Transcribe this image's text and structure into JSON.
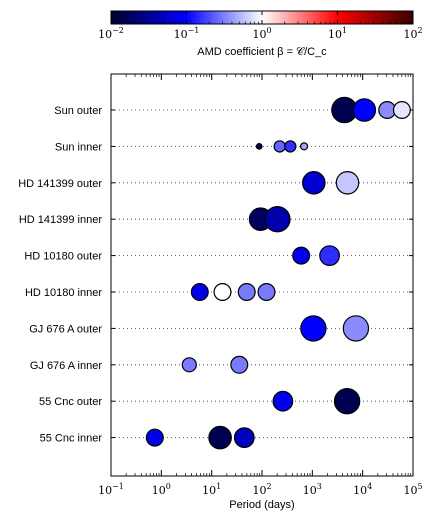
{
  "chart_data": {
    "type": "scatter",
    "xlabel": "Period (days)",
    "x_scale": "log",
    "xlim": [
      0.1,
      100000
    ],
    "x_ticks": [
      "10^{-1}",
      "10^{0}",
      "10^{1}",
      "10^{2}",
      "10^{3}",
      "10^{4}",
      "10^{5}"
    ],
    "grid": "dotted horizontal lines per system",
    "colorbar": {
      "label": "AMD coefficient β = 𝒞/C_c",
      "scale": "log",
      "range": [
        0.01,
        100
      ],
      "ticks": [
        "10^{-2}",
        "10^{-1}",
        "10^{0}",
        "10^{1}",
        "10^{2}"
      ],
      "colormap": [
        "#00002a",
        "#0000ff",
        "#ffffff",
        "#ff0000",
        "#3a0000"
      ]
    },
    "categories": [
      "Sun outer",
      "Sun inner",
      "HD 141399 outer",
      "HD 141399 inner",
      "HD 10180 outer",
      "HD 10180 inner",
      "GJ 676 A outer",
      "GJ 676 A inner",
      "55 Cnc outer",
      "55 Cnc inner"
    ],
    "series": [
      {
        "category": "Sun outer",
        "points": [
          {
            "period": 4330,
            "beta": 0.015,
            "size": 9
          },
          {
            "period": 10760,
            "beta": 0.1,
            "size": 8
          },
          {
            "period": 30700,
            "beta": 0.35,
            "size": 6
          },
          {
            "period": 60200,
            "beta": 0.8,
            "size": 6
          }
        ]
      },
      {
        "category": "Sun inner",
        "points": [
          {
            "period": 88,
            "beta": 0.015,
            "size": 2
          },
          {
            "period": 225,
            "beta": 0.25,
            "size": 4
          },
          {
            "period": 365,
            "beta": 0.15,
            "size": 4
          },
          {
            "period": 687,
            "beta": 0.45,
            "size": 2.5
          }
        ]
      },
      {
        "category": "HD 141399 outer",
        "points": [
          {
            "period": 1070,
            "beta": 0.06,
            "size": 8
          },
          {
            "period": 5000,
            "beta": 0.6,
            "size": 8
          }
        ]
      },
      {
        "category": "HD 141399 inner",
        "points": [
          {
            "period": 94,
            "beta": 0.018,
            "size": 8
          },
          {
            "period": 202,
            "beta": 0.04,
            "size": 9
          }
        ]
      },
      {
        "category": "HD 10180 outer",
        "points": [
          {
            "period": 600,
            "beta": 0.08,
            "size": 6
          },
          {
            "period": 2200,
            "beta": 0.15,
            "size": 7
          }
        ]
      },
      {
        "category": "HD 10180 inner",
        "points": [
          {
            "period": 5.8,
            "beta": 0.08,
            "size": 6
          },
          {
            "period": 16.4,
            "beta": 1.0,
            "size": 6
          },
          {
            "period": 49.7,
            "beta": 0.3,
            "size": 6
          },
          {
            "period": 122.7,
            "beta": 0.3,
            "size": 6
          }
        ]
      },
      {
        "category": "GJ 676 A outer",
        "points": [
          {
            "period": 1050,
            "beta": 0.1,
            "size": 9
          },
          {
            "period": 7340,
            "beta": 0.35,
            "size": 9
          }
        ]
      },
      {
        "category": "GJ 676 A inner",
        "points": [
          {
            "period": 3.6,
            "beta": 0.3,
            "size": 5
          },
          {
            "period": 35.4,
            "beta": 0.3,
            "size": 6
          }
        ]
      },
      {
        "category": "55 Cnc outer",
        "points": [
          {
            "period": 260,
            "beta": 0.08,
            "size": 7
          },
          {
            "period": 4900,
            "beta": 0.015,
            "size": 9
          }
        ]
      },
      {
        "category": "55 Cnc inner",
        "points": [
          {
            "period": 0.74,
            "beta": 0.08,
            "size": 6
          },
          {
            "period": 14.7,
            "beta": 0.015,
            "size": 8
          },
          {
            "period": 44.4,
            "beta": 0.05,
            "size": 7
          }
        ]
      }
    ]
  }
}
